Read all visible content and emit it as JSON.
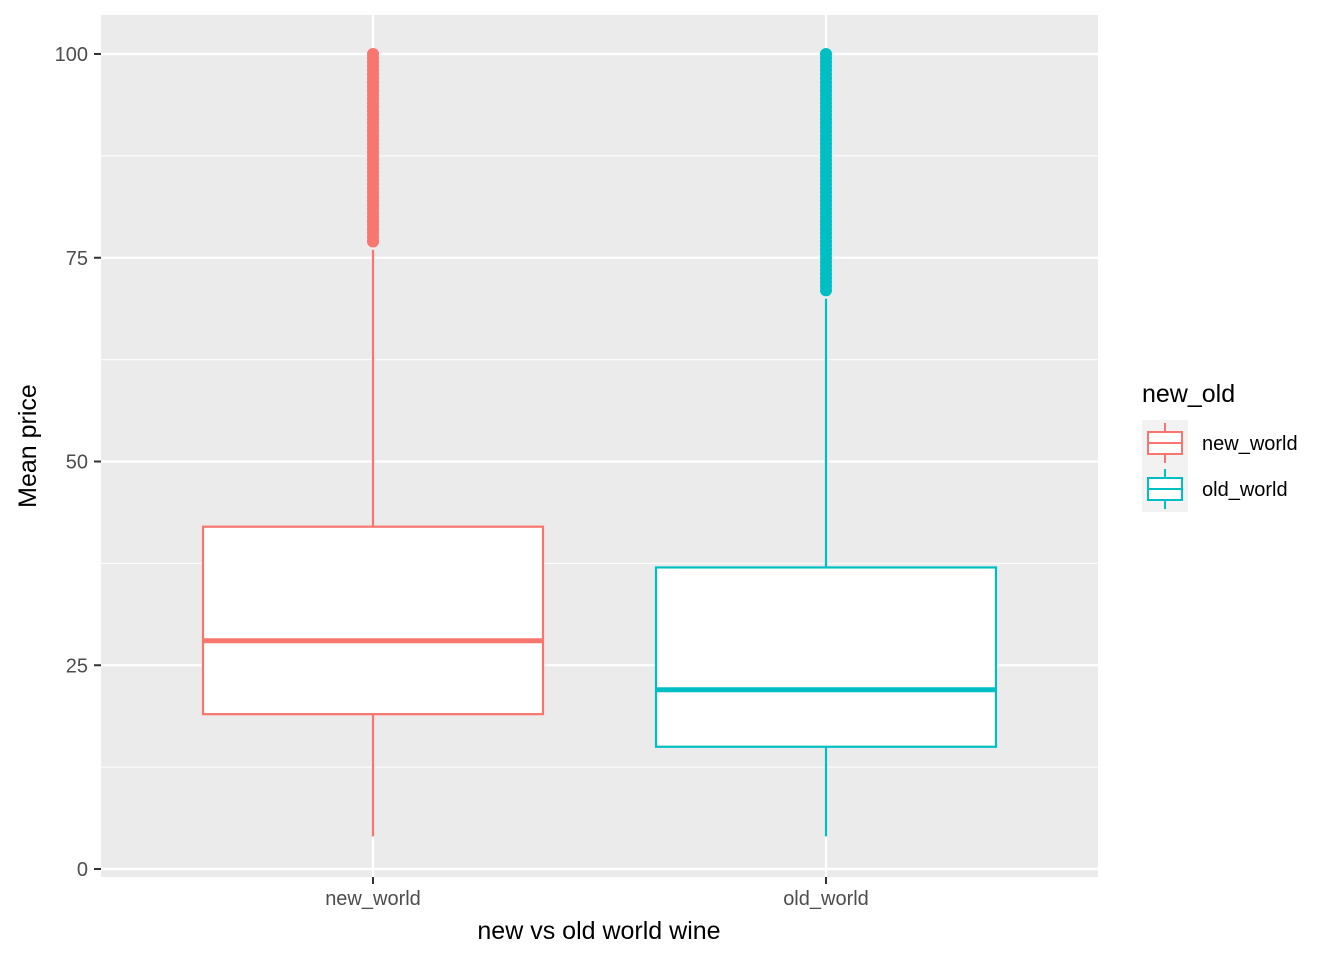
{
  "chart_data": {
    "type": "boxplot",
    "xlabel": "new vs old world wine",
    "ylabel": "Mean price",
    "ylim": [
      -2,
      105
    ],
    "yticks": [
      0,
      25,
      50,
      75,
      100
    ],
    "grid": true,
    "legend": {
      "title": "new_old",
      "position": "right",
      "entries": [
        "new_world",
        "old_world"
      ]
    },
    "categories": [
      "new_world",
      "old_world"
    ],
    "series": [
      {
        "name": "new_world",
        "color": "#F8766D",
        "whisker_low": 4,
        "q1": 19,
        "median": 28,
        "q3": 42,
        "whisker_high": 76,
        "outliers_range": [
          77,
          100
        ]
      },
      {
        "name": "old_world",
        "color": "#00BFC4",
        "whisker_low": 4,
        "q1": 15,
        "median": 22,
        "q3": 37,
        "whisker_high": 70,
        "outliers_range": [
          71,
          100
        ]
      }
    ]
  }
}
